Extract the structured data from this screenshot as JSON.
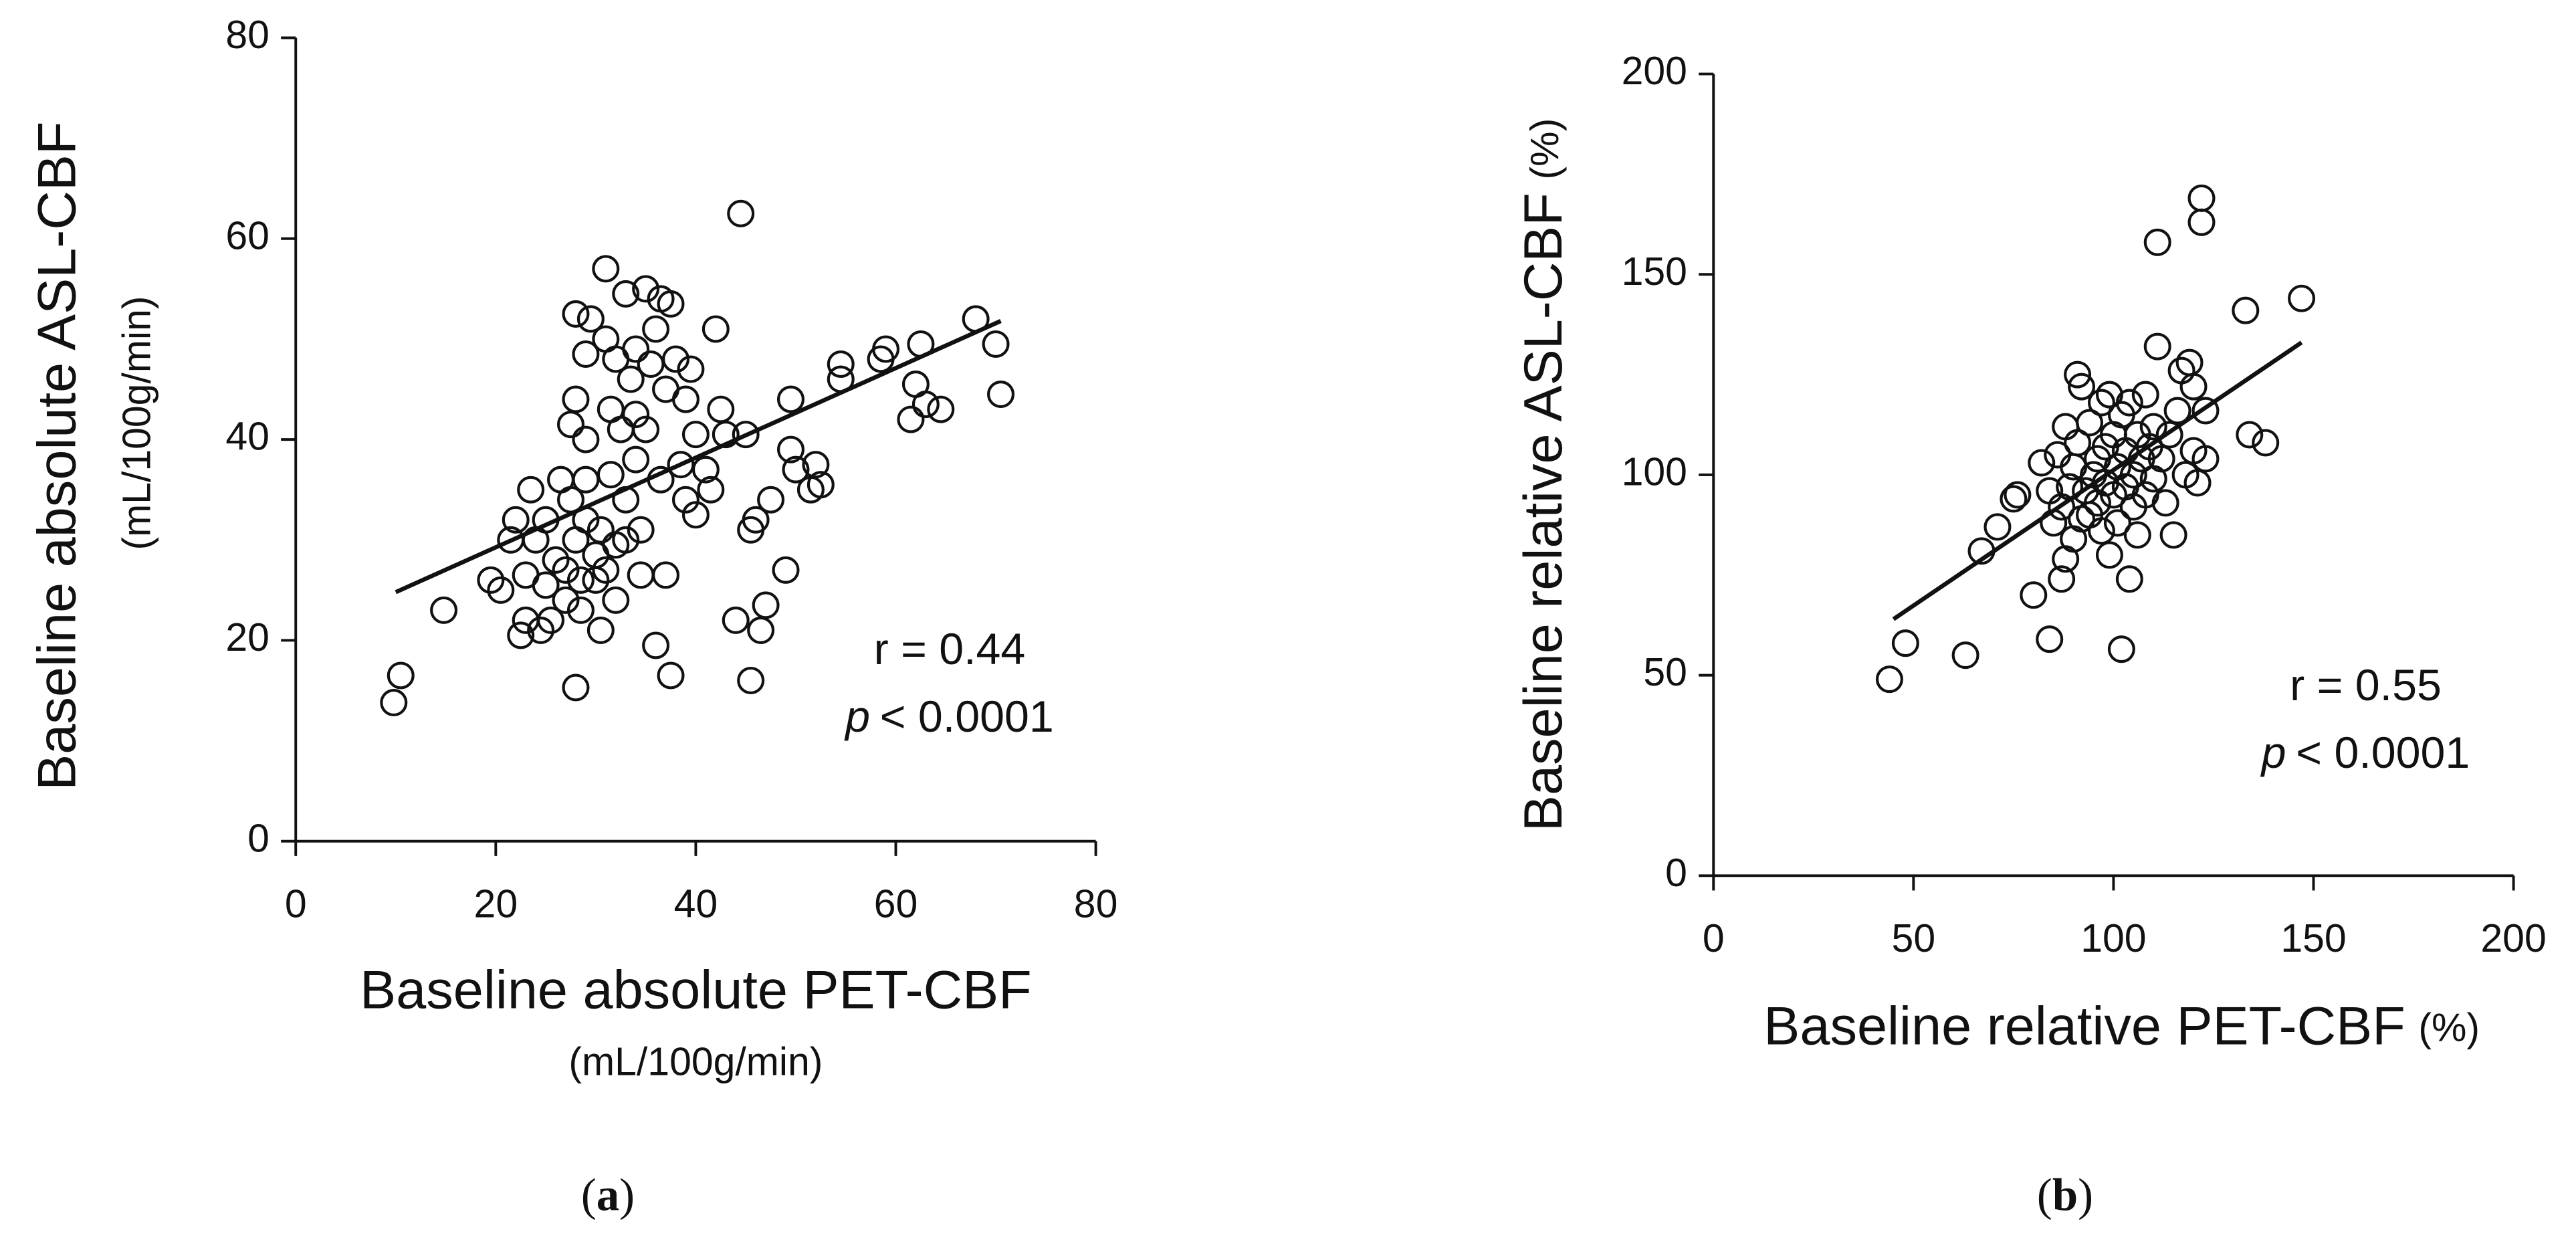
{
  "chart_data": [
    {
      "type": "scatter",
      "panel_label": {
        "open": "(",
        "letter": "a",
        "close": ")"
      },
      "x_label": "Baseline absolute PET-CBF",
      "x_label_sub": "(mL/100g/min)",
      "y_label": "Baseline absolute ASL-CBF",
      "y_label_sub": "(mL/100g/min)",
      "annotation": {
        "r": "r = 0.44",
        "p_symbol": "p",
        "p_text": "< 0.0001"
      },
      "xlim": [
        0,
        80
      ],
      "ylim": [
        0,
        80
      ],
      "xticks": [
        0,
        20,
        40,
        60,
        80
      ],
      "yticks": [
        0,
        20,
        40,
        60,
        80
      ],
      "fit_line": {
        "x": [
          10,
          70.5
        ],
        "y": [
          24.8,
          51.8
        ]
      },
      "x": [
        9.8,
        10.5,
        14.8,
        19.5,
        20.5,
        21.5,
        22,
        22.5,
        23,
        23,
        23.5,
        24,
        24.5,
        25,
        25,
        25.5,
        26,
        26.5,
        27,
        27,
        27.5,
        27.5,
        28,
        28,
        28,
        28,
        28.5,
        28.5,
        29,
        29,
        29,
        29,
        29.5,
        30,
        30,
        30.5,
        30.5,
        31,
        31,
        31,
        31.5,
        31.5,
        32,
        32,
        32,
        32.5,
        33,
        33,
        33,
        33.5,
        34,
        34,
        34,
        34.5,
        34.5,
        35,
        35,
        35.5,
        36,
        36,
        36.5,
        36.5,
        37,
        37,
        37.5,
        37.5,
        38,
        38.5,
        39,
        39,
        39.5,
        40,
        40,
        41,
        41.5,
        42,
        42.5,
        43,
        44,
        44.5,
        45,
        45.5,
        45.5,
        46,
        46.5,
        47,
        47.5,
        49,
        49.5,
        49.5,
        50,
        51.5,
        52,
        52.5,
        54.5,
        54.5,
        58.5,
        59,
        61.5,
        62,
        62.5,
        63,
        64.5,
        68,
        70,
        70.5
      ],
      "values": [
        13.8,
        16.5,
        23,
        26,
        25,
        30,
        32,
        20.5,
        22,
        26.5,
        35,
        30,
        21,
        25.5,
        32,
        22,
        28,
        36,
        24,
        27,
        34,
        41.5,
        44,
        52.5,
        30,
        15.3,
        23,
        26,
        32,
        36,
        40,
        48.5,
        52,
        26,
        28.5,
        21,
        31,
        27,
        57,
        50,
        43,
        36.5,
        29.5,
        24,
        48,
        41,
        30,
        34,
        54.5,
        46,
        38,
        42.5,
        49,
        31,
        26.5,
        55,
        41,
        47.5,
        51,
        19.5,
        54,
        36,
        26.5,
        45,
        53.5,
        16.5,
        48,
        37.5,
        44,
        34,
        47,
        40.5,
        32.5,
        37,
        35,
        51,
        43,
        40.5,
        22,
        62.5,
        40.5,
        16,
        31,
        32,
        21,
        23.5,
        34,
        27,
        44,
        39,
        37,
        35,
        37.5,
        35.5,
        47.5,
        46,
        48,
        49,
        42,
        45.5,
        49.5,
        43.5,
        43,
        52,
        49.5,
        44.5
      ]
    },
    {
      "type": "scatter",
      "panel_label": {
        "open": "(",
        "letter": "b",
        "close": ")"
      },
      "x_label": "Baseline relative PET-CBF",
      "x_label_sub": "(%)",
      "y_label": "Baseline relative ASL-CBF",
      "y_label_sub": "(%)",
      "annotation": {
        "r": "r = 0.55",
        "p_symbol": "p",
        "p_text": "< 0.0001"
      },
      "xlim": [
        0,
        200
      ],
      "ylim": [
        0,
        200
      ],
      "xticks": [
        0,
        50,
        100,
        150,
        200
      ],
      "yticks": [
        0,
        50,
        100,
        150,
        200
      ],
      "fit_line": {
        "x": [
          45,
          147
        ],
        "y": [
          64,
          133
        ]
      },
      "x": [
        44,
        48,
        63,
        67,
        71,
        75,
        76,
        80,
        82,
        84,
        84,
        85,
        86,
        87,
        87,
        88,
        88,
        89,
        90,
        90,
        91,
        91,
        92,
        92,
        93,
        94,
        94,
        95,
        96,
        96,
        97,
        97,
        98,
        98,
        99,
        99,
        100,
        100,
        101,
        101,
        102,
        102,
        103,
        103,
        104,
        104,
        105,
        105,
        106,
        106,
        107,
        108,
        108,
        109,
        110,
        110,
        111,
        111,
        112,
        113,
        114,
        115,
        116,
        117,
        118,
        119,
        120,
        120,
        121,
        122,
        122,
        123,
        123,
        133,
        134,
        138,
        147
      ],
      "values": [
        49,
        58,
        55,
        81,
        87,
        94,
        95,
        70,
        103,
        59,
        96,
        88,
        105,
        92,
        74,
        112,
        79,
        97,
        102,
        84,
        125,
        108,
        89,
        122,
        96,
        113,
        90,
        100,
        104,
        93,
        118,
        86,
        107,
        98,
        120,
        80,
        110,
        95,
        102,
        88,
        115,
        56.5,
        106,
        97,
        74,
        118,
        100,
        92,
        110,
        85,
        104,
        120,
        95,
        107,
        112,
        99,
        132,
        158,
        104,
        93,
        110,
        85,
        116,
        126,
        100,
        128,
        122,
        106,
        98,
        169,
        163,
        104,
        116,
        141,
        110,
        108,
        144
      ]
    }
  ]
}
